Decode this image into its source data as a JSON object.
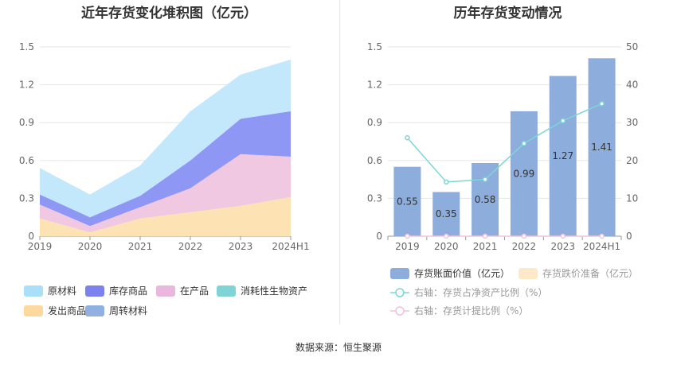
{
  "footer": {
    "source": "数据来源：恒生聚源"
  },
  "chart_data": [
    {
      "type": "area",
      "title": "近年存货变化堆积图（亿元）",
      "stacked": true,
      "x": [
        "2019",
        "2020",
        "2021",
        "2022",
        "2023",
        "2024H1"
      ],
      "ylim": [
        0,
        1.5
      ],
      "yticks": [
        "0",
        "0.3",
        "0.6",
        "0.9",
        "1.2",
        "1.5"
      ],
      "grid": true,
      "legend_position": "bottom",
      "series": [
        {
          "name": "发出商品",
          "color": "#fde3b4",
          "values": [
            0.14,
            0.03,
            0.14,
            0.19,
            0.24,
            0.31
          ]
        },
        {
          "name": "周转材料",
          "color": "#8fb0e0",
          "values": [
            0.0,
            0.0,
            0.0,
            0.0,
            0.0,
            0.0
          ]
        },
        {
          "name": "消耗性生物资产",
          "color": "#86d8d8",
          "values": [
            0.0,
            0.0,
            0.0,
            0.0,
            0.0,
            0.0
          ]
        },
        {
          "name": "在产品",
          "color": "#f0c8e2",
          "values": [
            0.11,
            0.05,
            0.09,
            0.19,
            0.41,
            0.32
          ]
        },
        {
          "name": "库存商品",
          "color": "#8f97f5",
          "values": [
            0.08,
            0.07,
            0.09,
            0.22,
            0.28,
            0.36
          ]
        },
        {
          "name": "原材料",
          "color": "#c3e8fb",
          "values": [
            0.21,
            0.18,
            0.24,
            0.39,
            0.35,
            0.41
          ]
        }
      ],
      "legend": [
        {
          "name": "原材料",
          "color": "#a8e0fa"
        },
        {
          "name": "库存商品",
          "color": "#7b82f0"
        },
        {
          "name": "在产品",
          "color": "#eab8dc"
        },
        {
          "name": "消耗性生物资产",
          "color": "#7fd5d5"
        },
        {
          "name": "发出商品",
          "color": "#fdd9a0"
        },
        {
          "name": "周转材料",
          "color": "#8fb0e0"
        }
      ]
    },
    {
      "type": "bar",
      "title": "历年存货变动情况",
      "categories": [
        "2019",
        "2020",
        "2021",
        "2022",
        "2023",
        "2024H1"
      ],
      "ylim": [
        0,
        1.5
      ],
      "yticks": [
        "0",
        "0.3",
        "0.6",
        "0.9",
        "1.2",
        "1.5"
      ],
      "y2lim": [
        0,
        50
      ],
      "y2ticks": [
        "0",
        "10",
        "20",
        "30",
        "40",
        "50"
      ],
      "grid": true,
      "legend_position": "bottom",
      "series": [
        {
          "name": "存货账面价值（亿元）",
          "type": "bar",
          "axis": "left",
          "color": "#8daddc",
          "values": [
            0.55,
            0.35,
            0.58,
            0.99,
            1.27,
            1.41
          ]
        },
        {
          "name": "存货跌价准备（亿元）",
          "type": "bar",
          "axis": "left",
          "color": "#fde9c8",
          "values": [
            0,
            0,
            0,
            0,
            0,
            0
          ]
        },
        {
          "name": "右轴：存货占净资产比例（%）",
          "type": "line",
          "axis": "right",
          "color": "#7dd6d6",
          "values": [
            26,
            14.3,
            15,
            24.5,
            30.5,
            35
          ]
        },
        {
          "name": "右轴：存货计提比例（%）",
          "type": "line",
          "axis": "right",
          "color": "#f0c2df",
          "values": [
            0,
            0,
            0,
            0,
            0,
            0
          ]
        }
      ]
    }
  ]
}
